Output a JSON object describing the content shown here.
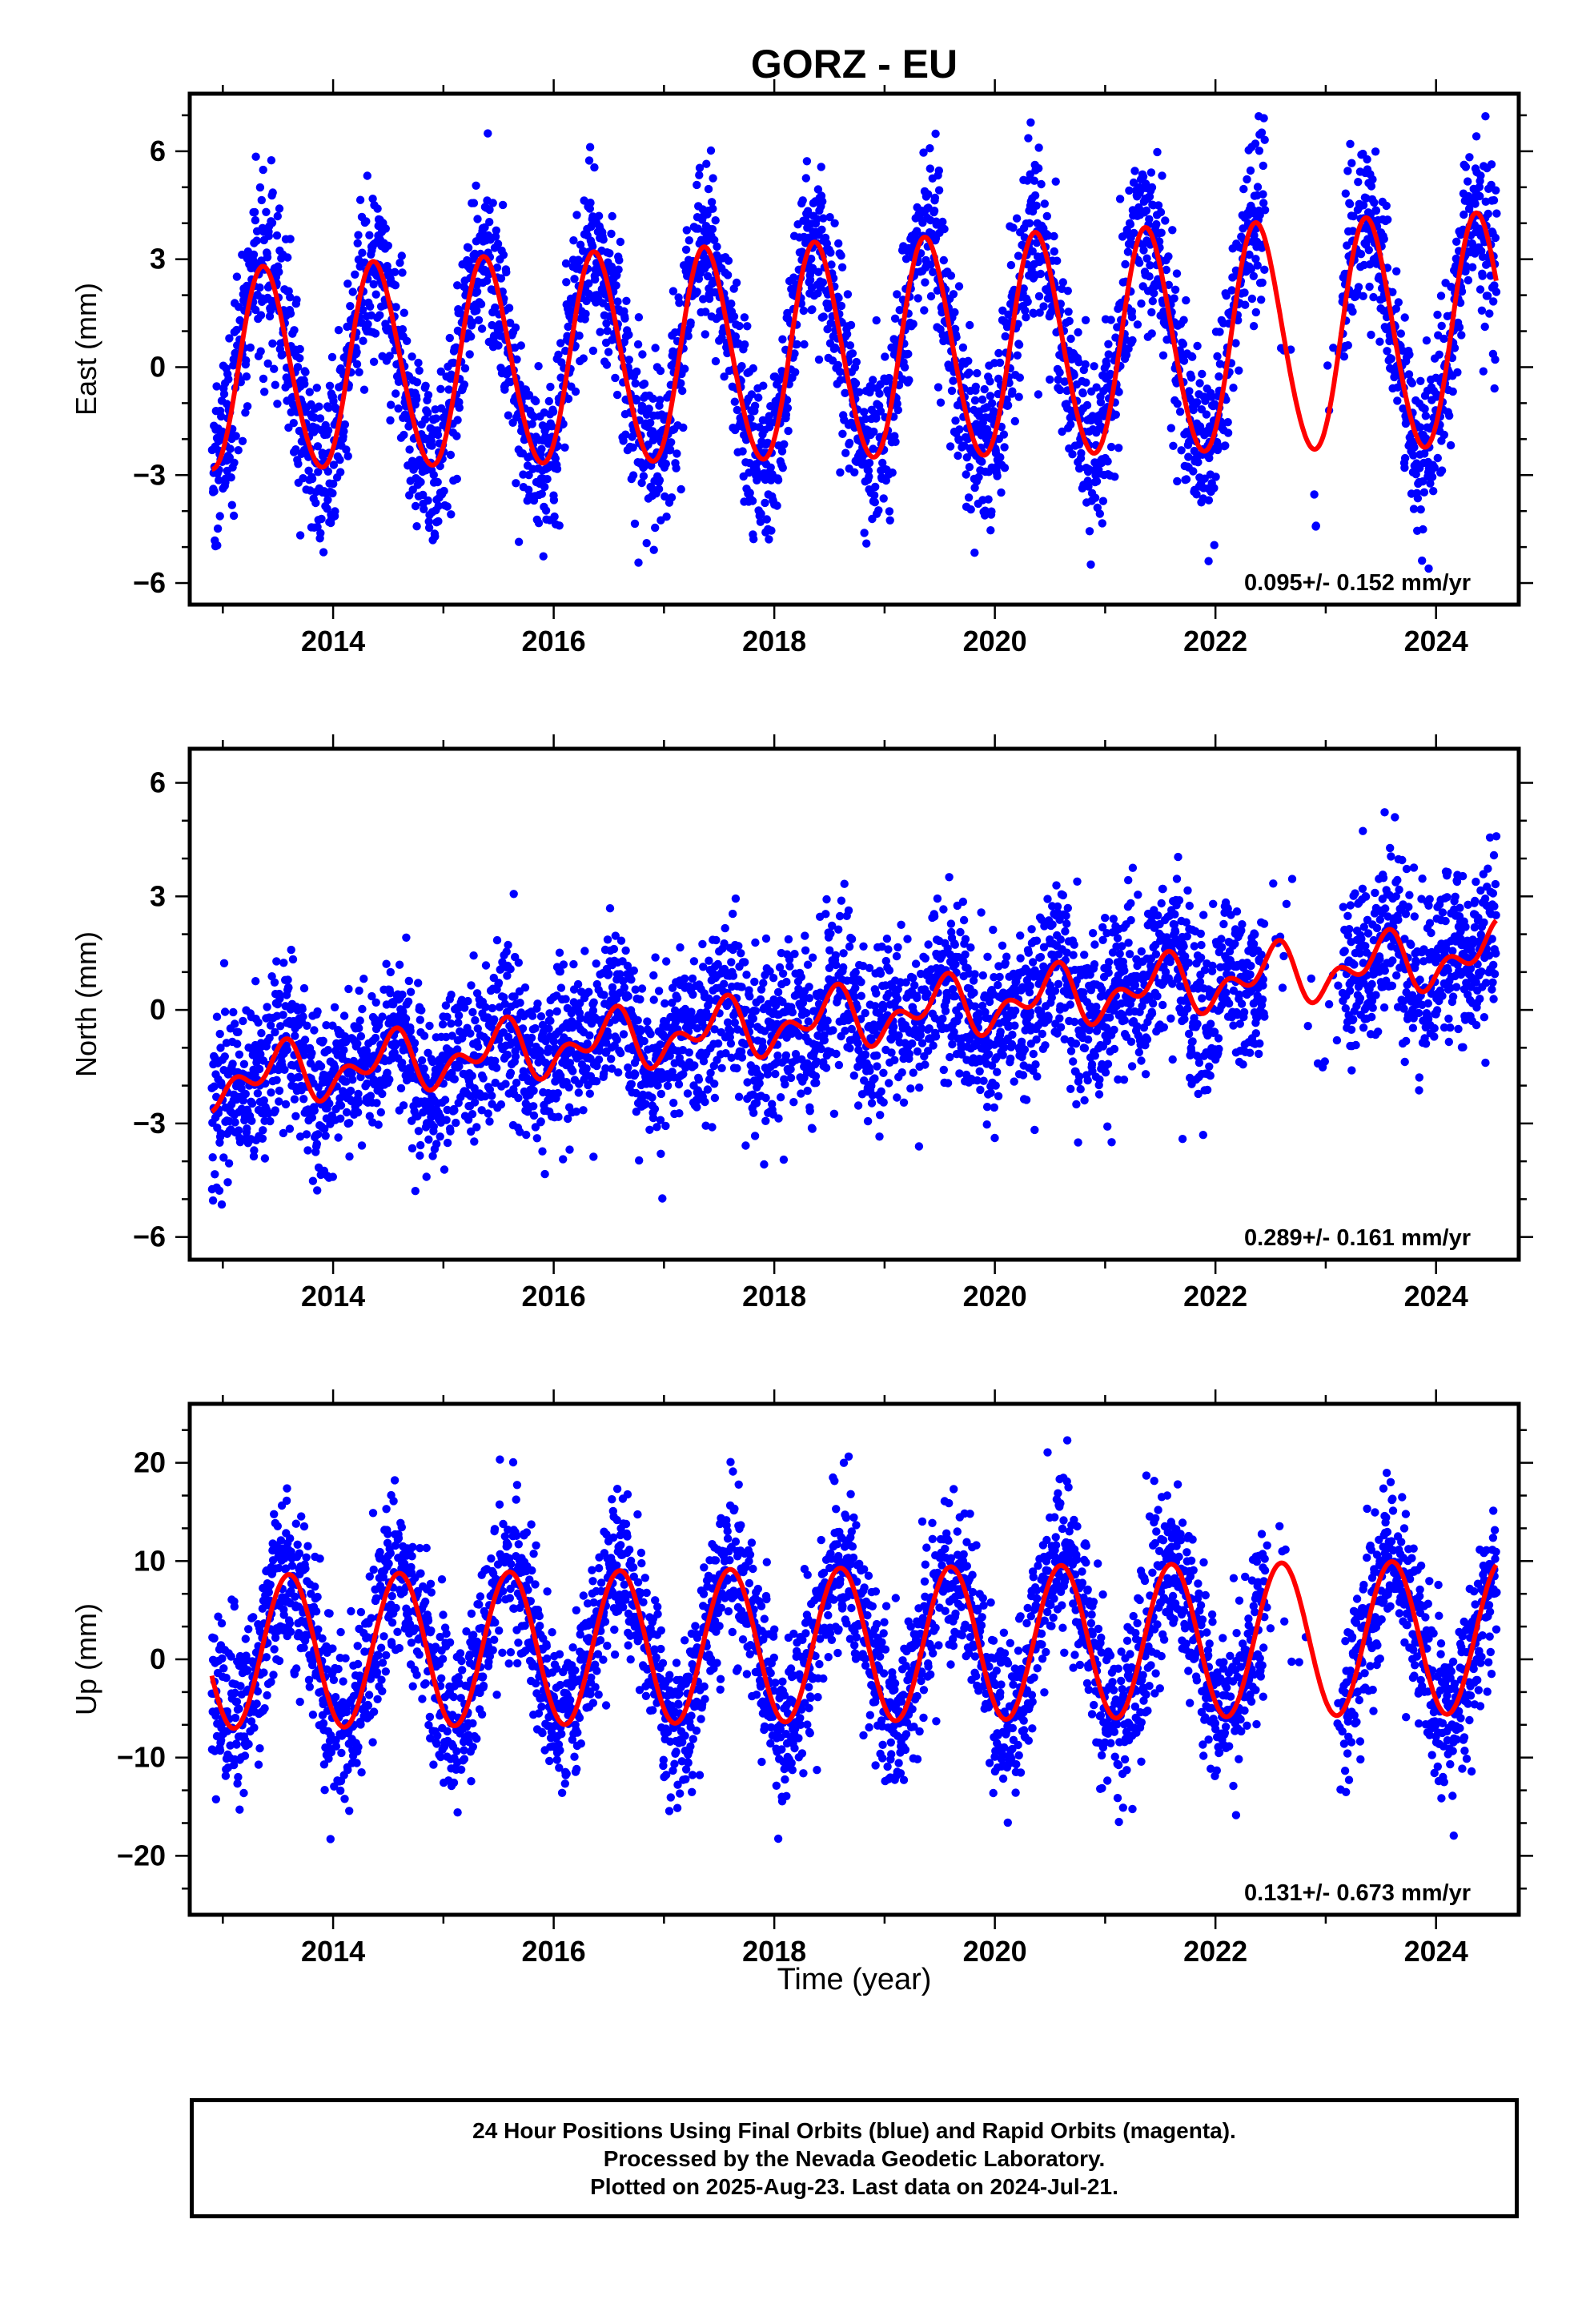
{
  "title": "GORZ - EU",
  "xlabel": "Time (year)",
  "footer": {
    "line1": "24 Hour Positions Using Final Orbits (blue) and Rapid Orbits (magenta).",
    "line2": "Processed by the Nevada Geodetic Laboratory.",
    "line3": "Plotted on 2025-Aug-23. Last data on 2024-Jul-21."
  },
  "colors": {
    "observations": "#0000ff",
    "model": "#ff0000",
    "frame": "#000000"
  },
  "chart_data": [
    {
      "type": "scatter",
      "component": "east",
      "ylabel": "East (mm)",
      "xlim": [
        2012.7,
        2024.75
      ],
      "ylim": [
        -6.6,
        7.6
      ],
      "xticks": [
        "2014",
        "2016",
        "2018",
        "2020",
        "2022",
        "2024"
      ],
      "yticks": [
        "6",
        "3",
        "0",
        "-3",
        "-6"
      ],
      "rate_label": "0.095+/- 0.152 mm/yr",
      "data_start": 2012.9,
      "data_end": 2024.55,
      "gap": [
        2022.45,
        2023.15
      ],
      "noise_sd": 1.2,
      "model": {
        "offset": 0.4,
        "trend": 0.095,
        "t_ref": 2018.7,
        "annual_amp": 3.0,
        "annual_peak": 0.38,
        "semiannual_amp": 0.2,
        "semiannual_phase": 0.3,
        "amp_growth": 0.08
      }
    },
    {
      "type": "scatter",
      "component": "north",
      "ylabel": "North (mm)",
      "xlim": [
        2012.7,
        2024.75
      ],
      "ylim": [
        -6.6,
        6.9
      ],
      "xticks": [
        "2014",
        "2016",
        "2018",
        "2020",
        "2022",
        "2024"
      ],
      "yticks": [
        "6",
        "3",
        "0",
        "-3",
        "-6"
      ],
      "rate_label": "0.289+/- 0.161 mm/yr",
      "data_start": 2012.9,
      "data_end": 2024.55,
      "gap": [
        2022.45,
        2023.15
      ],
      "noise_sd": 1.1,
      "model": {
        "offset": -0.2,
        "trend": 0.289,
        "t_ref": 2018.7,
        "annual_amp": 0.55,
        "annual_peak": 0.5,
        "semiannual_amp": 0.45,
        "semiannual_phase": 0.1,
        "amp_growth": 0.0
      }
    },
    {
      "type": "scatter",
      "component": "up",
      "ylabel": "Up (mm)",
      "xlim": [
        2012.7,
        2024.75
      ],
      "ylim": [
        -26,
        26
      ],
      "xticks": [
        "2014",
        "2016",
        "2018",
        "2020",
        "2022",
        "2024"
      ],
      "yticks": [
        "20",
        "10",
        "0",
        "-10",
        "-20"
      ],
      "rate_label": "0.131+/- 0.673 mm/yr",
      "data_start": 2012.9,
      "data_end": 2024.55,
      "gap": [
        2022.45,
        2023.15
      ],
      "noise_sd": 4.2,
      "model": {
        "offset": 1.5,
        "trend": 0.131,
        "t_ref": 2018.7,
        "annual_amp": 7.8,
        "annual_peak": 0.6,
        "semiannual_amp": 0.0,
        "semiannual_phase": 0.0,
        "amp_growth": 0.0
      }
    }
  ]
}
